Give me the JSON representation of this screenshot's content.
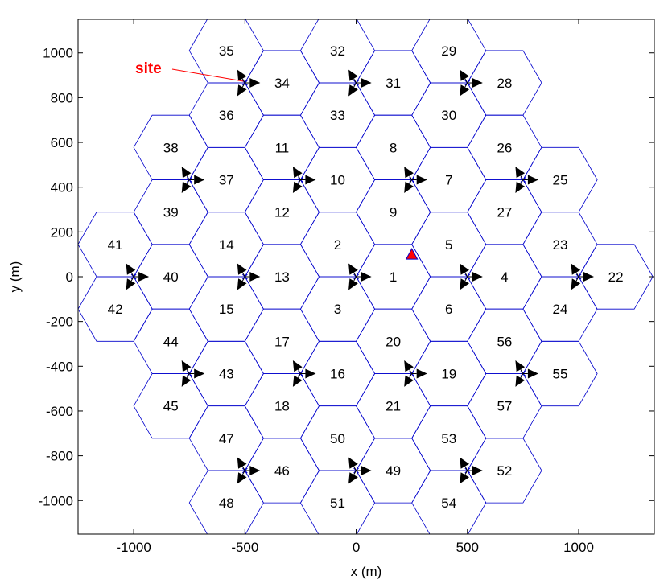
{
  "chart_data": {
    "type": "scatter",
    "xlabel": "x (m)",
    "ylabel": "y (m)",
    "xlim": [
      -1250,
      1340
    ],
    "ylim": [
      -1150,
      1150
    ],
    "x_ticks": [
      -1000,
      -500,
      0,
      500,
      1000
    ],
    "y_ticks": [
      -1000,
      -800,
      -600,
      -400,
      -200,
      0,
      200,
      400,
      600,
      800,
      1000
    ],
    "hex_radius_m": 166.7,
    "grid": false,
    "colors": {
      "hex_edge": "#0000cc",
      "sector_arrow": "#000000",
      "site_label": "#ff0000",
      "ue_marker_fill": "#ff0000",
      "ue_marker_edge": "#0000cc"
    },
    "annotation": {
      "text": "site",
      "points_to_site": [
        -500,
        866
      ]
    },
    "ue_marker": {
      "shape": "triangle-up",
      "x": 250,
      "y": 100
    },
    "sites": [
      {
        "x": 0,
        "y": 0,
        "cells": [
          "1",
          "2",
          "3"
        ]
      },
      {
        "x": 500,
        "y": 0,
        "cells": [
          "4",
          "5",
          "6"
        ]
      },
      {
        "x": 250,
        "y": 433,
        "cells": [
          "7",
          "8",
          "9"
        ]
      },
      {
        "x": -250,
        "y": 433,
        "cells": [
          "10",
          "11",
          "12"
        ]
      },
      {
        "x": -500,
        "y": 0,
        "cells": [
          "13",
          "14",
          "15"
        ]
      },
      {
        "x": -250,
        "y": -433,
        "cells": [
          "16",
          "17",
          "18"
        ]
      },
      {
        "x": 250,
        "y": -433,
        "cells": [
          "19",
          "20",
          "21"
        ]
      },
      {
        "x": 1000,
        "y": 0,
        "cells": [
          "22",
          "23",
          "24"
        ]
      },
      {
        "x": 750,
        "y": 433,
        "cells": [
          "25",
          "26",
          "27"
        ]
      },
      {
        "x": 500,
        "y": 866,
        "cells": [
          "28",
          "29",
          "30"
        ]
      },
      {
        "x": 0,
        "y": 866,
        "cells": [
          "31",
          "32",
          "33"
        ]
      },
      {
        "x": -500,
        "y": 866,
        "cells": [
          "34",
          "35",
          "36"
        ]
      },
      {
        "x": -750,
        "y": 433,
        "cells": [
          "37",
          "38",
          "39"
        ]
      },
      {
        "x": -1000,
        "y": 0,
        "cells": [
          "40",
          "41",
          "42"
        ]
      },
      {
        "x": -750,
        "y": -433,
        "cells": [
          "43",
          "44",
          "45"
        ]
      },
      {
        "x": -500,
        "y": -866,
        "cells": [
          "46",
          "47",
          "48"
        ]
      },
      {
        "x": 0,
        "y": -866,
        "cells": [
          "49",
          "50",
          "51"
        ]
      },
      {
        "x": 500,
        "y": -866,
        "cells": [
          "52",
          "53",
          "54"
        ]
      },
      {
        "x": 750,
        "y": -433,
        "cells": [
          "55",
          "56",
          "57"
        ]
      }
    ]
  }
}
